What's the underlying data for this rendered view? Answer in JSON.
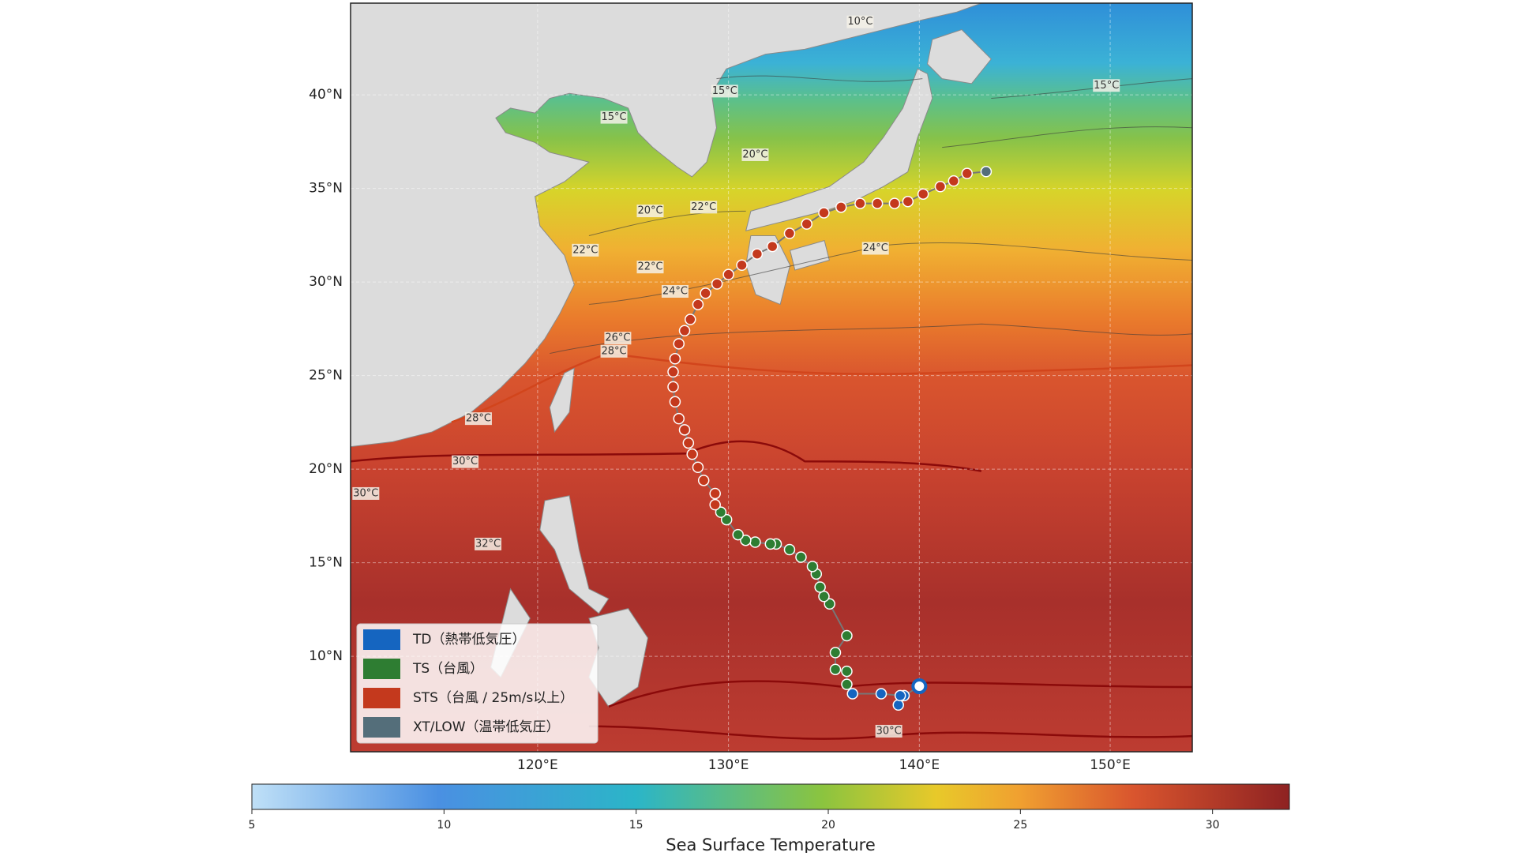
{
  "chart_data": {
    "type": "map",
    "xlim": [
      110.2,
      154.3
    ],
    "ylim": [
      4.9,
      44.9
    ],
    "xticks": [
      {
        "value": 120,
        "label": "120°E"
      },
      {
        "value": 130,
        "label": "130°E"
      },
      {
        "value": 140,
        "label": "140°E"
      },
      {
        "value": 150,
        "label": "150°E"
      }
    ],
    "yticks": [
      {
        "value": 10,
        "label": "10°N"
      },
      {
        "value": 15,
        "label": "15°N"
      },
      {
        "value": 20,
        "label": "20°N"
      },
      {
        "value": 25,
        "label": "25°N"
      },
      {
        "value": 30,
        "label": "30°N"
      },
      {
        "value": 35,
        "label": "35°N"
      },
      {
        "value": 40,
        "label": "40°N"
      }
    ],
    "grid": true,
    "legend": "lower left",
    "series": [
      {
        "name": "TD（熱帯低気圧）",
        "color": "#1565c0",
        "x": [
          140.0,
          139.2,
          138.9,
          139.0,
          138.0,
          136.5
        ],
        "y": [
          8.4,
          7.9,
          7.4,
          7.9,
          8.0,
          8.0
        ]
      },
      {
        "name": "TS（台風）",
        "color": "#2e7d32",
        "x": [
          136.2,
          136.2,
          135.6,
          135.6,
          136.2,
          135.3,
          135.0,
          134.8,
          134.6,
          134.4,
          133.8,
          133.2,
          132.5,
          132.2,
          131.4,
          130.9,
          130.5,
          129.9,
          129.6
        ],
        "y": [
          8.5,
          9.2,
          9.3,
          10.2,
          11.1,
          12.8,
          13.2,
          13.7,
          14.4,
          14.8,
          15.3,
          15.7,
          16.0,
          16.0,
          16.1,
          16.2,
          16.5,
          17.3,
          17.7
        ]
      },
      {
        "name": "STS（台風 / 25m/s以上）",
        "color": "#c4391d",
        "x": [
          129.3,
          129.3,
          128.7,
          128.4,
          128.1,
          127.9,
          127.7,
          127.4,
          127.2,
          127.1,
          127.1,
          127.2,
          127.4,
          127.7,
          128.0,
          128.4,
          128.8,
          129.4,
          130.0,
          130.7,
          131.5,
          132.3,
          133.2,
          134.1,
          135.0,
          135.9,
          136.9,
          137.8,
          138.7,
          139.4,
          140.2,
          141.1,
          141.8,
          142.5
        ],
        "y": [
          18.1,
          18.7,
          19.4,
          20.1,
          20.8,
          21.4,
          22.1,
          22.7,
          23.6,
          24.4,
          25.2,
          25.9,
          26.7,
          27.4,
          28.0,
          28.8,
          29.4,
          29.9,
          30.4,
          30.9,
          31.5,
          31.9,
          32.6,
          33.1,
          33.7,
          34.0,
          34.2,
          34.2,
          34.2,
          34.3,
          34.7,
          35.1,
          35.4,
          35.8
        ]
      },
      {
        "name": "XT/LOW（温帯低気圧）",
        "color": "#546e7a",
        "x": [
          143.5
        ],
        "y": [
          35.9
        ]
      }
    ],
    "contour_labels": [
      {
        "label": "10°C",
        "x": 136.9,
        "y": 43.9
      },
      {
        "label": "15°C",
        "x": 129.8,
        "y": 40.2
      },
      {
        "label": "15°C",
        "x": 124.0,
        "y": 38.8
      },
      {
        "label": "15°C",
        "x": 149.8,
        "y": 40.5
      },
      {
        "label": "20°C",
        "x": 131.4,
        "y": 36.8
      },
      {
        "label": "20°C",
        "x": 125.9,
        "y": 33.8
      },
      {
        "label": "22°C",
        "x": 128.7,
        "y": 34.0
      },
      {
        "label": "22°C",
        "x": 122.5,
        "y": 31.7
      },
      {
        "label": "22°C",
        "x": 125.9,
        "y": 30.8
      },
      {
        "label": "24°C",
        "x": 127.2,
        "y": 29.5
      },
      {
        "label": "24°C",
        "x": 137.7,
        "y": 31.8
      },
      {
        "label": "26°C",
        "x": 124.2,
        "y": 27.0
      },
      {
        "label": "28°C",
        "x": 124.0,
        "y": 26.3
      },
      {
        "label": "28°C",
        "x": 116.9,
        "y": 22.7
      },
      {
        "label": "30°C",
        "x": 116.2,
        "y": 20.4
      },
      {
        "label": "30°C",
        "x": 111.0,
        "y": 18.7
      },
      {
        "label": "32°C",
        "x": 117.4,
        "y": 16.0
      },
      {
        "label": "30°C",
        "x": 138.4,
        "y": 6.0
      }
    ],
    "colorbar": {
      "label": "Sea Surface Temperature",
      "lim": [
        5,
        32
      ],
      "ticks": [
        5,
        10,
        15,
        20,
        25,
        30
      ]
    }
  }
}
